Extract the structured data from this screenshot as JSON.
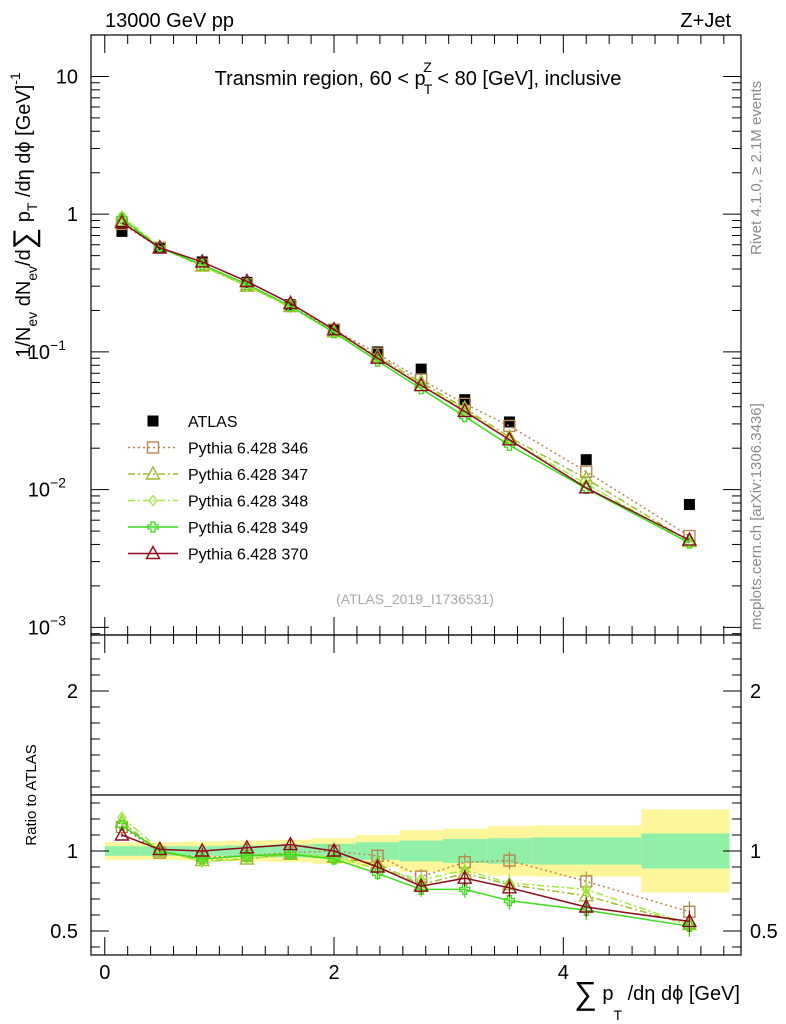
{
  "header": {
    "left": "13000 GeV pp",
    "right": "Z+Jet"
  },
  "side_labels": {
    "rivet": "Rivet 4.1.0, ≥ 2.1M events",
    "mcplots": "mcplots.cern.ch [arXiv:1306.3436]"
  },
  "watermark": "(ATLAS_2019_I1736531)",
  "colors": {
    "ATLAS": "#000000",
    "346": "#b8874e",
    "347": "#a3ba2a",
    "348": "#9cec3b",
    "349": "#3cdc1c",
    "370": "#8b0c1c",
    "band_green": "#90f0a8",
    "band_yellow": "#fff59a"
  },
  "chart_data": [
    {
      "type": "scatter",
      "panel": "main",
      "title": "Transmin region, 60 < p_T^Z < 80 [GeV], inclusive",
      "title_parts": [
        "Transmin region, 60 < p",
        "Z",
        "T",
        " < 80 [GeV], inclusive"
      ],
      "ylabel": "1/N_ev dN_ev/d∑ p_T /dη dϕ  [GeV]^-1",
      "ylabel_parts": [
        "1/N",
        "ev",
        " dN",
        "ev",
        "/d",
        "∑",
        " p",
        "T",
        " /dη dϕ  [GeV]",
        "-1"
      ],
      "yscale": "log",
      "ylim": [
        0.00088,
        20
      ],
      "xlim": [
        -0.12,
        5.55
      ],
      "y_ticks": [
        {
          "v": 10,
          "label": "10"
        },
        {
          "v": 1,
          "label": "1"
        },
        {
          "v": 0.1,
          "label": "10",
          "exp": "−1"
        },
        {
          "v": 0.01,
          "label": "10",
          "exp": "−2"
        },
        {
          "v": 0.001,
          "label": "10",
          "exp": "−3"
        }
      ],
      "x": [
        0.15,
        0.48,
        0.85,
        1.24,
        1.62,
        2.0,
        2.38,
        2.76,
        3.14,
        3.53,
        4.2,
        5.1
      ],
      "series": [
        {
          "name": "ATLAS",
          "key": "ATLAS",
          "marker": "square-filled",
          "line": "none",
          "values": [
            0.75,
            0.57,
            0.45,
            0.32,
            0.22,
            0.145,
            0.1,
            0.075,
            0.045,
            0.031,
            0.0165,
            0.0078
          ]
        },
        {
          "name": "Pythia 6.428 346",
          "key": "346",
          "marker": "square-open",
          "line": "dotted",
          "values": [
            0.85,
            0.57,
            0.43,
            0.31,
            0.215,
            0.145,
            0.097,
            0.063,
            0.042,
            0.029,
            0.0135,
            0.0046
          ]
        },
        {
          "name": "Pythia 6.428 347",
          "key": "347",
          "marker": "triangle-open",
          "line": "dashdot",
          "values": [
            0.9,
            0.57,
            0.42,
            0.3,
            0.215,
            0.14,
            0.093,
            0.06,
            0.039,
            0.024,
            0.012,
            0.0042
          ]
        },
        {
          "name": "Pythia 6.428 348",
          "key": "348",
          "marker": "diamond-open",
          "line": "dashdot",
          "values": [
            0.97,
            0.58,
            0.42,
            0.3,
            0.21,
            0.14,
            0.09,
            0.058,
            0.038,
            0.023,
            0.011,
            0.0041
          ]
        },
        {
          "name": "Pythia 6.428 349",
          "key": "349",
          "marker": "cross",
          "line": "solid",
          "values": [
            0.93,
            0.57,
            0.43,
            0.31,
            0.215,
            0.138,
            0.086,
            0.054,
            0.034,
            0.021,
            0.0102,
            0.0041
          ]
        },
        {
          "name": "Pythia 6.428 370",
          "key": "370",
          "marker": "triangle-open",
          "line": "solid",
          "values": [
            0.87,
            0.57,
            0.45,
            0.325,
            0.225,
            0.145,
            0.09,
            0.057,
            0.037,
            0.023,
            0.0103,
            0.0043
          ]
        }
      ]
    },
    {
      "type": "scatter",
      "panel": "ratio",
      "ylabel": "Ratio to ATLAS",
      "xlabel": "∑ p_T /dη dϕ [GeV]",
      "xlabel_parts": [
        "∑",
        " p",
        "T",
        " /dη dϕ [GeV]"
      ],
      "ylim": [
        0.35,
        2.35
      ],
      "xlim": [
        -0.12,
        5.55
      ],
      "y_ticks": [
        {
          "v": 2,
          "label": "2"
        },
        {
          "v": 1,
          "label": "1"
        },
        {
          "v": 0.5,
          "label": "0.5"
        }
      ],
      "x_ticks": [
        {
          "v": 0,
          "label": "0"
        },
        {
          "v": 2,
          "label": "2"
        },
        {
          "v": 4,
          "label": "4"
        }
      ],
      "reference": 1.0,
      "bands": {
        "edges": [
          0.0,
          0.3,
          0.67,
          1.05,
          1.43,
          1.81,
          2.19,
          2.57,
          2.95,
          3.34,
          3.72,
          4.68,
          5.45
        ],
        "green_half": [
          0.03,
          0.03,
          0.03,
          0.035,
          0.04,
          0.045,
          0.055,
          0.065,
          0.075,
          0.08,
          0.085,
          0.11
        ],
        "yellow_half": [
          0.055,
          0.055,
          0.06,
          0.065,
          0.07,
          0.08,
          0.1,
          0.13,
          0.14,
          0.155,
          0.16,
          0.26
        ]
      },
      "x": [
        0.15,
        0.48,
        0.85,
        1.24,
        1.62,
        2.0,
        2.38,
        2.76,
        3.14,
        3.53,
        4.2,
        5.1
      ],
      "series": [
        {
          "name": "Pythia 6.428 346",
          "key": "346",
          "marker": "square-open",
          "line": "dotted",
          "values": [
            1.15,
            0.99,
            0.96,
            0.97,
            0.99,
            1.0,
            0.97,
            0.84,
            0.93,
            0.94,
            0.81,
            0.62
          ]
        },
        {
          "name": "Pythia 6.428 347",
          "key": "347",
          "marker": "triangle-open",
          "line": "dashdot",
          "values": [
            1.18,
            1.0,
            0.94,
            0.95,
            0.98,
            0.96,
            0.92,
            0.79,
            0.86,
            0.79,
            0.72,
            0.54
          ]
        },
        {
          "name": "Pythia 6.428 348",
          "key": "348",
          "marker": "diamond-open",
          "line": "dashdot",
          "values": [
            1.21,
            1.01,
            0.93,
            0.95,
            0.98,
            0.96,
            0.89,
            0.82,
            0.88,
            0.8,
            0.76,
            0.54
          ]
        },
        {
          "name": "Pythia 6.428 349",
          "key": "349",
          "marker": "cross",
          "line": "solid",
          "values": [
            1.16,
            1.0,
            0.95,
            0.97,
            0.98,
            0.95,
            0.86,
            0.76,
            0.76,
            0.69,
            0.63,
            0.53
          ]
        },
        {
          "name": "Pythia 6.428 370",
          "key": "370",
          "marker": "triangle-open",
          "line": "solid",
          "values": [
            1.1,
            1.01,
            1.0,
            1.02,
            1.04,
            1.0,
            0.9,
            0.78,
            0.83,
            0.77,
            0.65,
            0.56
          ]
        }
      ]
    }
  ]
}
